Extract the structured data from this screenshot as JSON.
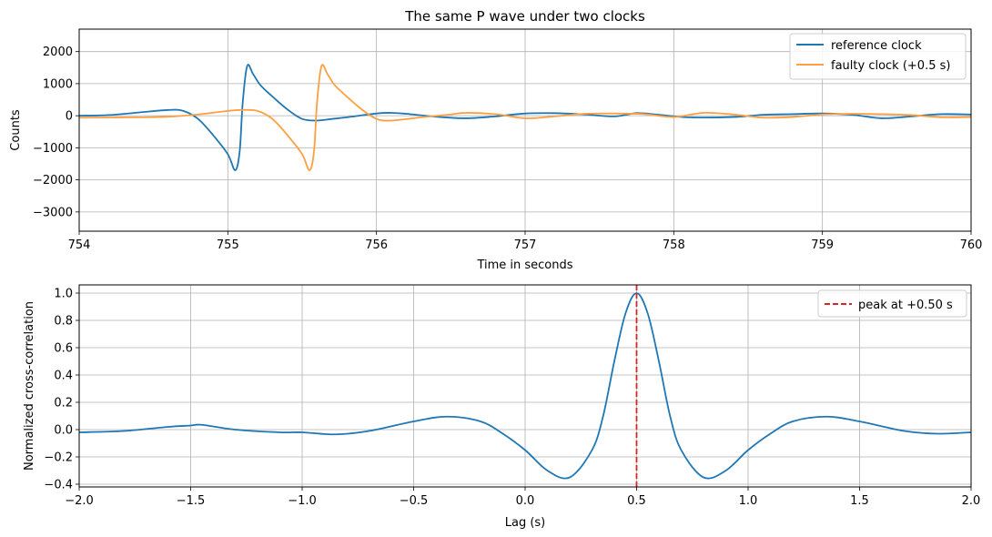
{
  "chart_data": [
    {
      "type": "line",
      "title": "The same P wave under two clocks",
      "xlabel": "Time in seconds",
      "ylabel": "Counts",
      "xlim": [
        754,
        760
      ],
      "ylim": [
        -3600,
        2700
      ],
      "x_ticks": [
        754,
        755,
        756,
        757,
        758,
        759,
        760
      ],
      "x_tick_labels": [
        "754",
        "755",
        "756",
        "757",
        "758",
        "759",
        "760"
      ],
      "y_ticks": [
        -3000,
        -2000,
        -1000,
        0,
        1000,
        2000
      ],
      "y_tick_labels": [
        "−3000",
        "−2000",
        "−1000",
        "0",
        "1000",
        "2000"
      ],
      "grid": true,
      "legend_position": "top-right",
      "series": [
        {
          "name": "reference clock",
          "color": "#1f77b4",
          "x": [
            754.0,
            754.2,
            754.4,
            754.6,
            754.7,
            754.8,
            754.9,
            755.0,
            755.05,
            755.08,
            755.1,
            755.13,
            755.17,
            755.22,
            755.3,
            755.4,
            755.5,
            755.6,
            755.7,
            755.8,
            756.0,
            756.1,
            756.2,
            756.4,
            756.6,
            756.8,
            757.0,
            757.2,
            757.4,
            757.6,
            757.75,
            757.9,
            758.1,
            758.4,
            758.6,
            758.8,
            759.0,
            759.2,
            759.4,
            759.6,
            759.8,
            760.0
          ],
          "y": [
            0,
            20,
            100,
            180,
            150,
            -100,
            -600,
            -1200,
            -1700,
            -1100,
            400,
            1550,
            1300,
            950,
            600,
            200,
            -100,
            -150,
            -100,
            -50,
            70,
            90,
            60,
            -30,
            -80,
            -20,
            70,
            80,
            40,
            -20,
            80,
            30,
            -50,
            -40,
            30,
            50,
            70,
            30,
            -80,
            -20,
            50,
            40
          ]
        },
        {
          "name": "faulty clock (+0.5 s)",
          "color": "#ff9f40",
          "x": [
            754.0,
            754.4,
            754.6,
            754.8,
            755.0,
            755.1,
            755.2,
            755.3,
            755.4,
            755.5,
            755.55,
            755.58,
            755.6,
            755.63,
            755.67,
            755.72,
            755.8,
            755.9,
            756.0,
            756.1,
            756.3,
            756.5,
            756.6,
            756.8,
            757.0,
            757.2,
            757.4,
            757.6,
            757.8,
            758.0,
            758.2,
            758.4,
            758.6,
            758.8,
            759.0,
            759.2,
            759.4,
            759.6,
            759.8,
            760.0
          ],
          "y": [
            -60,
            -50,
            -30,
            40,
            150,
            180,
            150,
            -100,
            -600,
            -1200,
            -1700,
            -1100,
            400,
            1550,
            1300,
            950,
            600,
            200,
            -100,
            -150,
            -50,
            40,
            90,
            50,
            -80,
            -20,
            60,
            70,
            50,
            -40,
            90,
            40,
            -60,
            -40,
            40,
            60,
            50,
            20,
            -50,
            -40
          ]
        }
      ]
    },
    {
      "type": "line",
      "title": "",
      "xlabel": "Lag (s)",
      "ylabel": "Normalized cross-correlation",
      "xlim": [
        -2.0,
        2.0
      ],
      "ylim": [
        -0.42,
        1.06
      ],
      "x_ticks": [
        -2.0,
        -1.5,
        -1.0,
        -0.5,
        0.0,
        0.5,
        1.0,
        1.5,
        2.0
      ],
      "x_tick_labels": [
        "−2.0",
        "−1.5",
        "−1.0",
        "−0.5",
        "0.0",
        "0.5",
        "1.0",
        "1.5",
        "2.0"
      ],
      "y_ticks": [
        -0.4,
        -0.2,
        0.0,
        0.2,
        0.4,
        0.6,
        0.8,
        1.0
      ],
      "y_tick_labels": [
        "−0.4",
        "−0.2",
        "0.0",
        "0.2",
        "0.4",
        "0.6",
        "0.8",
        "1.0"
      ],
      "grid": true,
      "legend_position": "top-right",
      "series": [
        {
          "name": "",
          "color": "#1f77b4",
          "x": [
            -2.0,
            -1.8,
            -1.6,
            -1.5,
            -1.45,
            -1.3,
            -1.1,
            -1.0,
            -0.85,
            -0.7,
            -0.5,
            -0.35,
            -0.2,
            -0.1,
            0.0,
            0.1,
            0.2,
            0.3,
            0.35,
            0.4,
            0.45,
            0.5,
            0.55,
            0.6,
            0.65,
            0.7,
            0.8,
            0.9,
            1.0,
            1.1,
            1.2,
            1.35,
            1.5,
            1.7,
            1.85,
            2.0
          ],
          "y": [
            -0.02,
            -0.01,
            0.02,
            0.03,
            0.035,
            0.0,
            -0.02,
            -0.02,
            -0.035,
            -0.01,
            0.06,
            0.095,
            0.06,
            -0.03,
            -0.15,
            -0.3,
            -0.35,
            -0.15,
            0.1,
            0.5,
            0.85,
            1.0,
            0.85,
            0.5,
            0.1,
            -0.15,
            -0.35,
            -0.3,
            -0.15,
            -0.03,
            0.06,
            0.095,
            0.06,
            -0.01,
            -0.03,
            -0.02
          ]
        }
      ],
      "peak_marker": {
        "name": "peak at +0.50 s",
        "x": 0.5,
        "color": "#d62728",
        "style": "dashed"
      }
    }
  ]
}
